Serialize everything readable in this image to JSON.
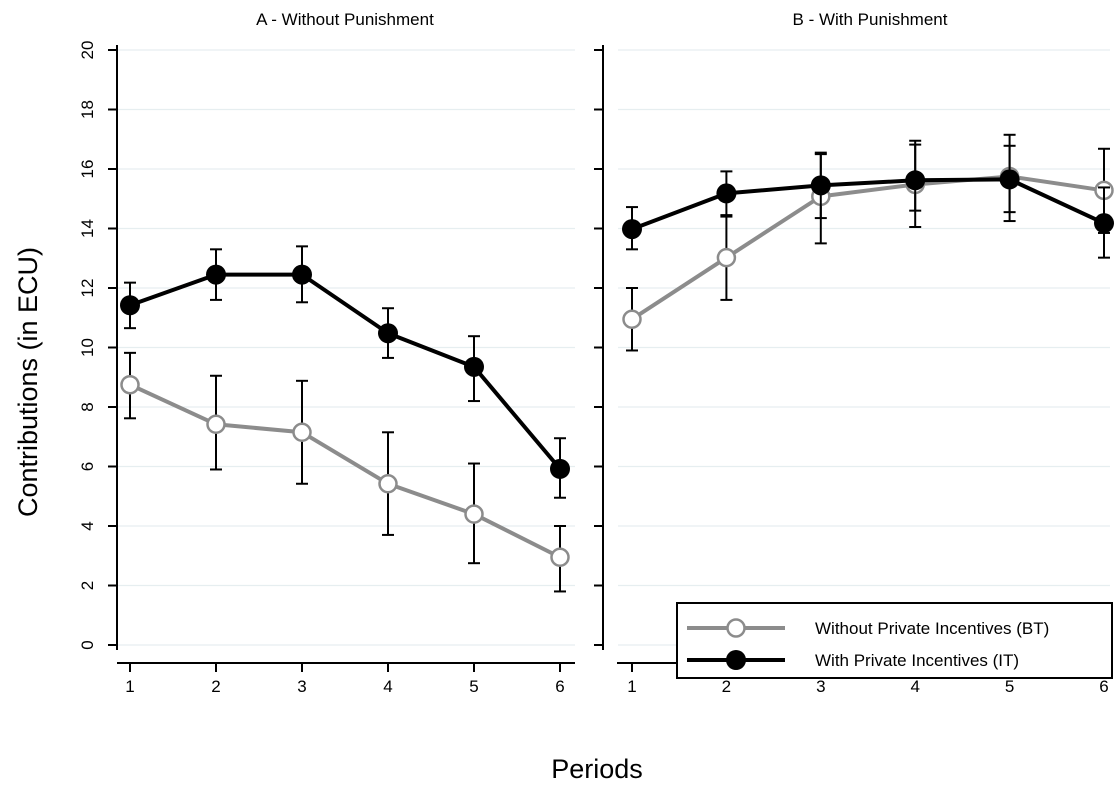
{
  "chart_data": {
    "type": "line",
    "ylabel": "Contributions (in ECU)",
    "xlabel": "Periods",
    "ylim": [
      0,
      20
    ],
    "yticks": [
      0,
      2,
      4,
      6,
      8,
      10,
      12,
      14,
      16,
      18,
      20
    ],
    "x": [
      1,
      2,
      3,
      4,
      5,
      6
    ],
    "grid": true,
    "legend": {
      "placement": "bottom-right",
      "entries": [
        "Without Private Incentives (BT)",
        "With Private Incentives (IT)"
      ]
    },
    "colors": {
      "bt": "#8c8c8c",
      "it": "#000000"
    },
    "panels": [
      {
        "title": "A - Without Punishment",
        "series": [
          {
            "name": "Without Private Incentives (BT)",
            "marker": "hollow-circle",
            "values": [
              8.75,
              7.42,
              7.15,
              5.42,
              4.4,
              2.95
            ],
            "err_low": [
              7.62,
              5.9,
              5.42,
              3.7,
              2.75,
              1.8
            ],
            "err_high": [
              9.82,
              9.05,
              8.88,
              7.15,
              6.1,
              4.0
            ]
          },
          {
            "name": "With Private Incentives (IT)",
            "marker": "filled-circle",
            "values": [
              11.42,
              12.45,
              12.45,
              10.48,
              9.35,
              5.92
            ],
            "err_low": [
              10.65,
              11.6,
              11.52,
              9.65,
              8.2,
              4.95
            ],
            "err_high": [
              12.18,
              13.3,
              13.4,
              11.32,
              10.38,
              6.95
            ]
          }
        ]
      },
      {
        "title": "B - With Punishment",
        "series": [
          {
            "name": "Without Private Incentives (BT)",
            "marker": "hollow-circle",
            "values": [
              10.95,
              13.02,
              15.08,
              15.48,
              15.75,
              15.28
            ],
            "err_low": [
              9.9,
              11.6,
              13.5,
              14.05,
              14.25,
              13.85
            ],
            "err_high": [
              12.0,
              14.4,
              16.5,
              16.82,
              16.78,
              16.68
            ]
          },
          {
            "name": "With Private Incentives (IT)",
            "marker": "filled-circle",
            "values": [
              13.98,
              15.18,
              15.45,
              15.62,
              15.65,
              14.18
            ],
            "err_low": [
              13.3,
              14.45,
              14.35,
              14.6,
              14.55,
              13.02
            ],
            "err_high": [
              14.72,
              15.92,
              16.55,
              16.95,
              17.15,
              15.38
            ]
          }
        ]
      }
    ]
  }
}
